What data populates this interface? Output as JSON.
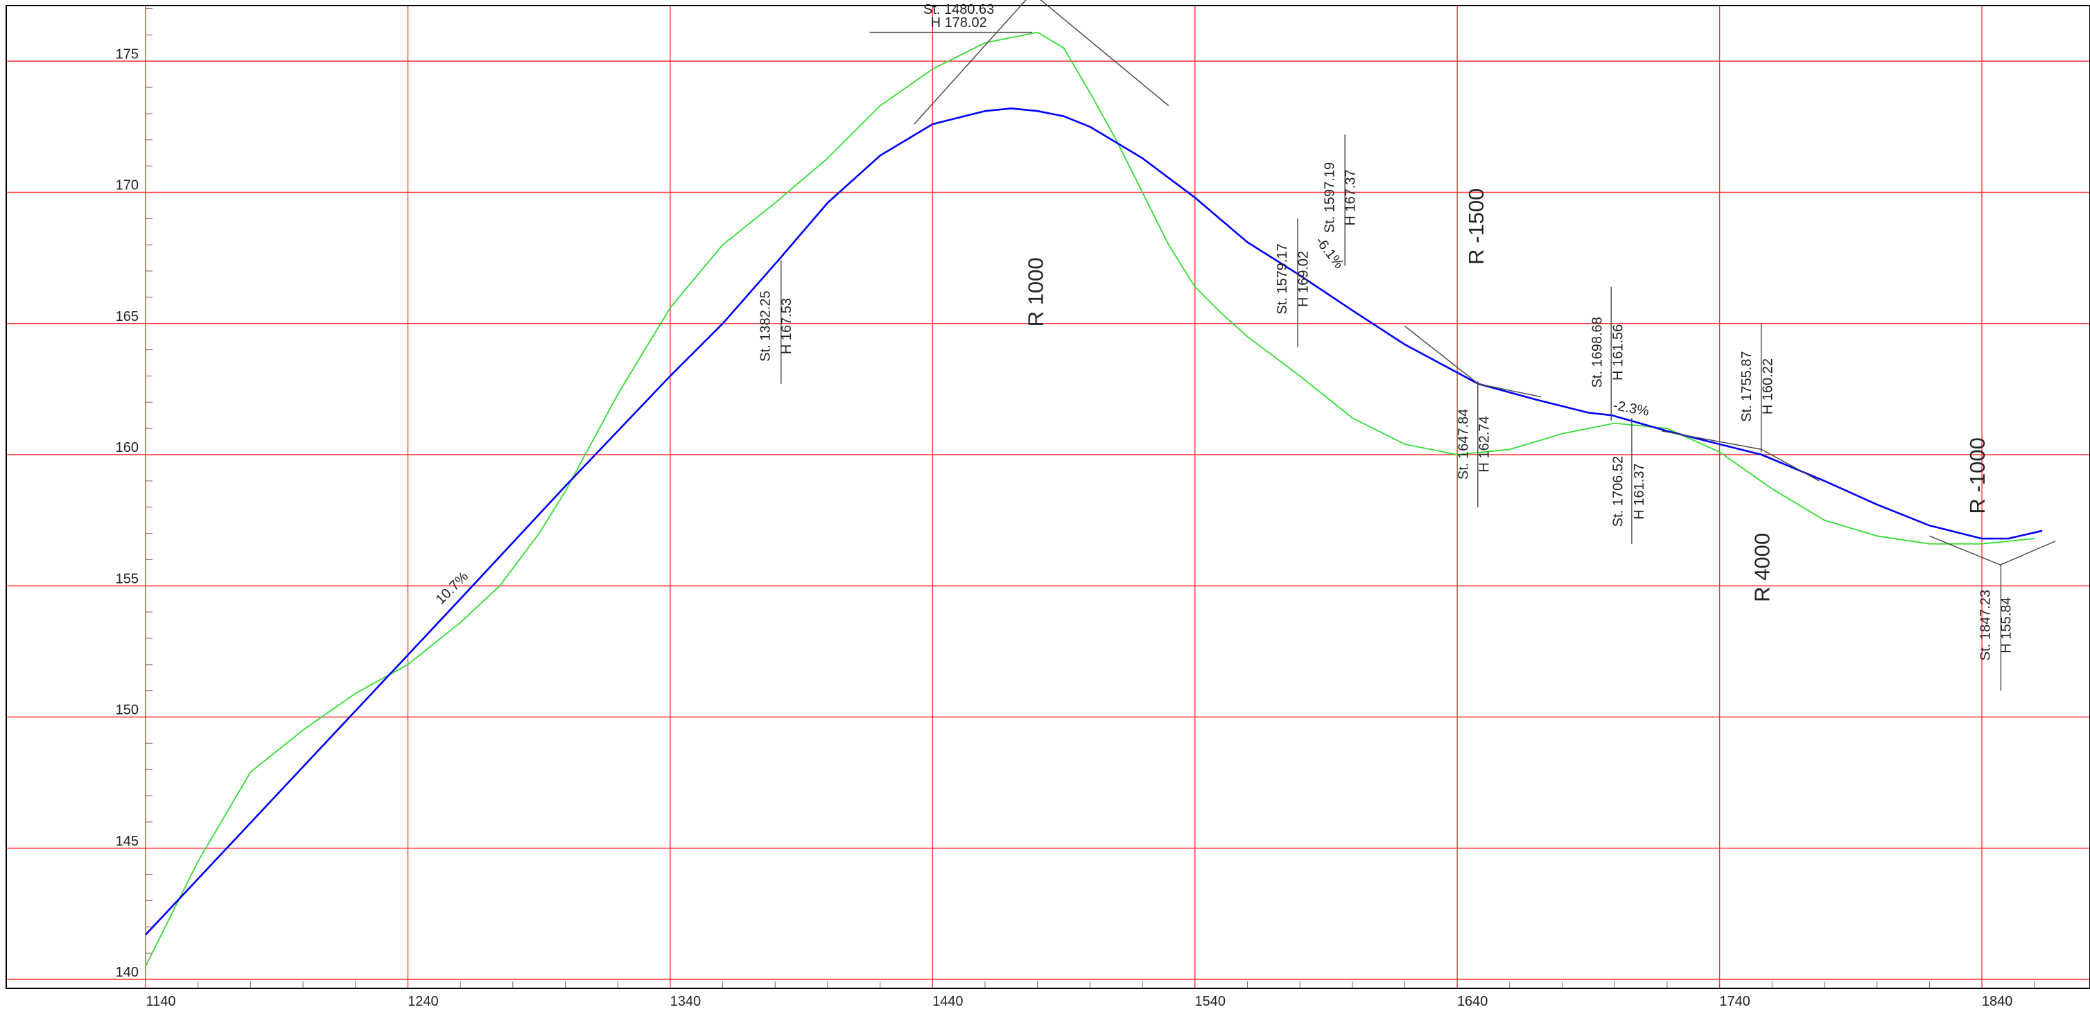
{
  "chart_data": {
    "type": "line",
    "title": "",
    "xlabel": "",
    "ylabel": "",
    "xlim": [
      1140,
      1860
    ],
    "ylim": [
      140,
      177
    ],
    "x_ticks": [
      1140,
      1240,
      1340,
      1440,
      1540,
      1640,
      1740,
      1840
    ],
    "y_ticks": [
      140,
      145,
      150,
      155,
      160,
      165,
      170,
      175
    ],
    "x_tick_labels": [
      "1140",
      "1240",
      "1340",
      "1440",
      "1540",
      "1640",
      "1740",
      "1840"
    ],
    "y_tick_labels": [
      "140",
      "145",
      "150",
      "155",
      "160",
      "165",
      "170",
      "175"
    ],
    "grid": true,
    "colors": {
      "grid": "#ff3333",
      "design": "#0000ff",
      "ground": "#33dd33",
      "tangent": "#444444",
      "frame": "#000000"
    },
    "series": [
      {
        "name": "",
        "role": "design",
        "color": "#0000ff",
        "x": [
          1140,
          1200,
          1260,
          1300,
          1340,
          1360,
          1382,
          1400,
          1420,
          1440,
          1460,
          1470,
          1480,
          1490,
          1500,
          1520,
          1540,
          1560,
          1579,
          1600,
          1620,
          1648,
          1670,
          1690,
          1699,
          1720,
          1740,
          1756,
          1780,
          1800,
          1820,
          1840,
          1850,
          1863
        ],
        "y": [
          141.7,
          148.1,
          154.5,
          158.8,
          163.0,
          165.0,
          167.5,
          169.6,
          171.4,
          172.6,
          173.1,
          173.2,
          173.1,
          172.9,
          172.5,
          171.3,
          169.8,
          168.1,
          166.9,
          165.5,
          164.2,
          162.7,
          162.1,
          161.6,
          161.5,
          160.9,
          160.4,
          160.0,
          159.0,
          158.1,
          157.3,
          156.8,
          156.8,
          157.1
        ]
      },
      {
        "name": "",
        "role": "ground",
        "color": "#33dd33",
        "x": [
          1140,
          1160,
          1180,
          1200,
          1220,
          1240,
          1260,
          1275,
          1290,
          1300,
          1320,
          1340,
          1360,
          1380,
          1400,
          1420,
          1440,
          1460,
          1480,
          1490,
          1500,
          1510,
          1520,
          1530,
          1540,
          1550,
          1560,
          1580,
          1600,
          1620,
          1640,
          1660,
          1680,
          1700,
          1720,
          1740,
          1760,
          1780,
          1800,
          1820,
          1840,
          1860
        ],
        "y": [
          140.5,
          144.5,
          147.9,
          149.5,
          150.9,
          152.0,
          153.6,
          155.0,
          157.0,
          158.6,
          162.3,
          165.6,
          168.0,
          169.6,
          171.3,
          173.3,
          174.7,
          175.7,
          176.1,
          175.5,
          173.8,
          172.0,
          170.0,
          168.0,
          166.4,
          165.4,
          164.5,
          163.0,
          161.4,
          160.4,
          160.0,
          160.2,
          160.8,
          161.2,
          161.0,
          160.1,
          158.7,
          157.5,
          156.9,
          156.6,
          156.6,
          156.8
        ]
      }
    ],
    "tangents": [
      [
        [
          1433,
          172.6
        ],
        [
          1478,
          177.6
        ],
        [
          1530,
          173.3
        ]
      ],
      [
        [
          1620,
          164.9
        ],
        [
          1648,
          162.7
        ],
        [
          1672,
          162.2
        ]
      ],
      [
        [
          1718,
          160.9
        ],
        [
          1756,
          160.2
        ],
        [
          1778,
          159.0
        ]
      ],
      [
        [
          1820,
          156.9
        ],
        [
          1847,
          155.8
        ],
        [
          1868,
          156.7
        ]
      ]
    ],
    "vertical_markers": [
      {
        "x": 1382.25,
        "from": 162.7,
        "to": 167.4
      },
      {
        "x": 1579.17,
        "from": 164.1,
        "to": 169.0
      },
      {
        "x": 1597.19,
        "from": 167.2,
        "to": 172.2
      },
      {
        "x": 1647.84,
        "from": 158.0,
        "to": 162.8
      },
      {
        "x": 1698.68,
        "from": 161.3,
        "to": 166.4
      },
      {
        "x": 1706.52,
        "from": 156.6,
        "to": 161.4
      },
      {
        "x": 1755.87,
        "from": 160.1,
        "to": 165.0
      },
      {
        "x": 1847.23,
        "from": 151.0,
        "to": 155.8
      }
    ],
    "station_labels": [
      {
        "text": "St. 1480.63",
        "x": 1450,
        "y": 176.8,
        "rotate": 0
      },
      {
        "text": "H 178.02",
        "x": 1450,
        "y": 176.3,
        "rotate": 0
      },
      {
        "text": "St. 1382.25",
        "x": 1378,
        "y": 164.9,
        "rotate": -90
      },
      {
        "text": "H 167.53",
        "x": 1386,
        "y": 164.9,
        "rotate": -90
      },
      {
        "text": "St. 1579.17",
        "x": 1575,
        "y": 166.7,
        "rotate": -90
      },
      {
        "text": "H 169.02",
        "x": 1583,
        "y": 166.7,
        "rotate": -90
      },
      {
        "text": "St. 1597.19",
        "x": 1593,
        "y": 169.8,
        "rotate": -90
      },
      {
        "text": "H 167.37",
        "x": 1601,
        "y": 169.8,
        "rotate": -90
      },
      {
        "text": "St. 1647.84",
        "x": 1644,
        "y": 160.4,
        "rotate": -90
      },
      {
        "text": "H 162.74",
        "x": 1652,
        "y": 160.4,
        "rotate": -90
      },
      {
        "text": "St. 1698.68",
        "x": 1695,
        "y": 163.9,
        "rotate": -90
      },
      {
        "text": "H 161.56",
        "x": 1703,
        "y": 163.9,
        "rotate": -90
      },
      {
        "text": "St. 1706.52",
        "x": 1703,
        "y": 158.6,
        "rotate": -90
      },
      {
        "text": "H 161.37",
        "x": 1711,
        "y": 158.6,
        "rotate": -90
      },
      {
        "text": "St. 1755.87",
        "x": 1752,
        "y": 162.6,
        "rotate": -90
      },
      {
        "text": "H 160.22",
        "x": 1760,
        "y": 162.6,
        "rotate": -90
      },
      {
        "text": "St. 1847.23",
        "x": 1843,
        "y": 153.5,
        "rotate": -90
      },
      {
        "text": "H 155.84",
        "x": 1851,
        "y": 153.5,
        "rotate": -90
      }
    ],
    "grade_labels": [
      {
        "text": "10.7%",
        "x": 1258,
        "y": 154.8,
        "rotate": -45
      },
      {
        "text": "-6.1%",
        "x": 1590,
        "y": 167.6,
        "rotate": 52
      },
      {
        "text": "-2.3%",
        "x": 1706,
        "y": 161.6,
        "rotate": 10
      }
    ],
    "curve_labels": [
      {
        "text": "R 1000",
        "x": 1482,
        "y": 166.2,
        "rotate": -90
      },
      {
        "text": "R -1500",
        "x": 1650,
        "y": 168.7,
        "rotate": -90
      },
      {
        "text": "R 4000",
        "x": 1759,
        "y": 155.7,
        "rotate": -90
      },
      {
        "text": "R -1000",
        "x": 1841,
        "y": 159.2,
        "rotate": -90
      }
    ]
  }
}
